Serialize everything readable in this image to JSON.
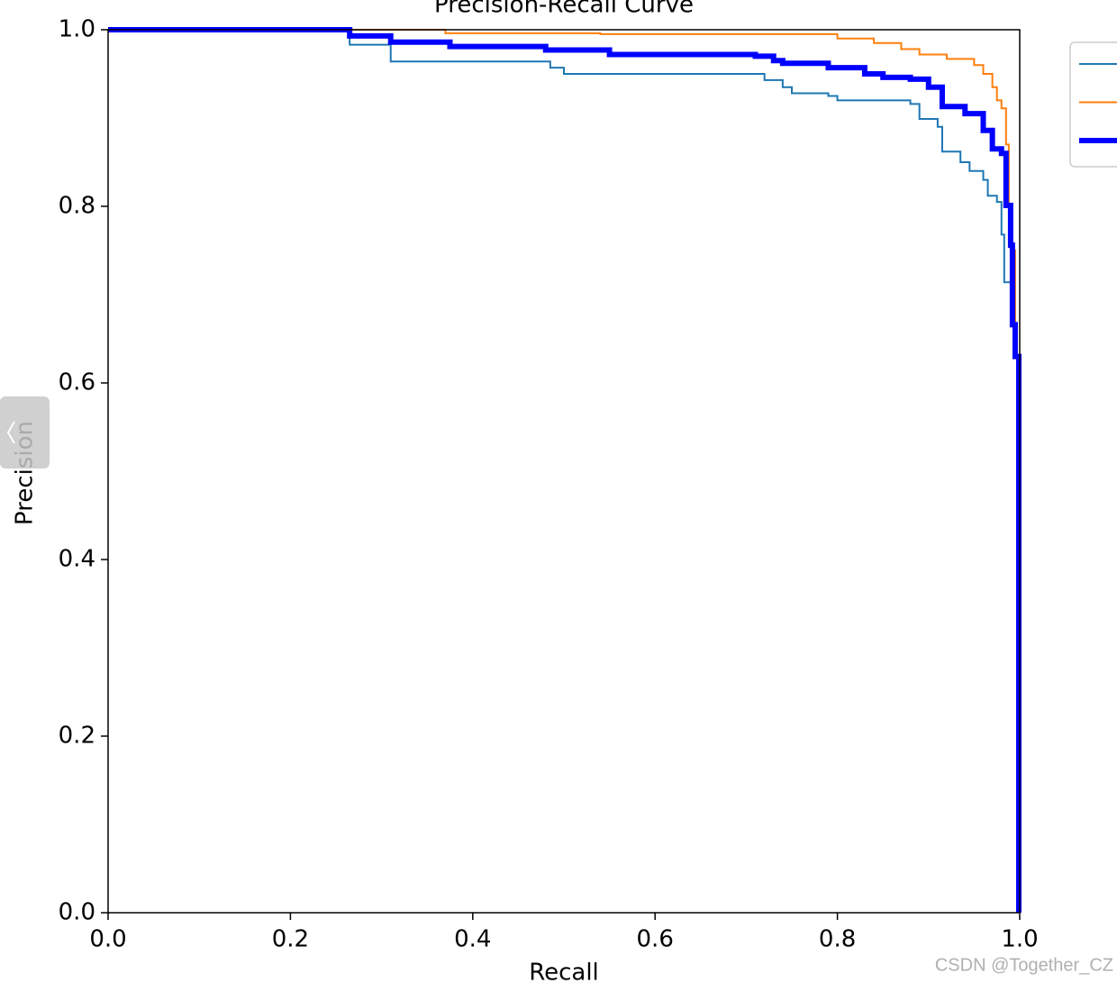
{
  "chart_data": {
    "type": "line",
    "title": "Precision-Recall Curve",
    "xlabel": "Recall",
    "ylabel": "Precision",
    "drawstyle": "steps-post",
    "legend": true,
    "xlim": [
      0,
      1
    ],
    "ylim": [
      0,
      1
    ],
    "xticks": [
      {
        "value": 0,
        "label": "0.0"
      },
      0.2,
      0.4,
      0.6,
      0.8,
      {
        "value": 1,
        "label": "1.0"
      }
    ],
    "yticks": [
      {
        "value": 0,
        "label": "0.0"
      },
      0.2,
      0.4,
      0.6,
      0.8,
      {
        "value": 1,
        "label": "1.0"
      }
    ],
    "series": [
      {
        "color": "#1f77b4",
        "width": 2,
        "x": [
          0,
          0.265,
          0.31,
          0.485,
          0.5,
          0.72,
          0.74,
          0.75,
          0.79,
          0.8,
          0.88,
          0.89,
          0.91,
          0.915,
          0.935,
          0.945,
          0.96,
          0.965,
          0.975,
          0.98,
          0.983,
          0.995,
          1.0
        ],
        "values": [
          1.0,
          0.983,
          0.964,
          0.957,
          0.95,
          0.943,
          0.935,
          0.928,
          0.925,
          0.92,
          0.916,
          0.899,
          0.89,
          0.862,
          0.85,
          0.84,
          0.83,
          0.812,
          0.805,
          0.768,
          0.714,
          0.63,
          0.0
        ]
      },
      {
        "color": "#ff7f0e",
        "width": 2,
        "x": [
          0,
          0.37,
          0.54,
          0.8,
          0.84,
          0.87,
          0.89,
          0.92,
          0.95,
          0.96,
          0.97,
          0.975,
          0.98,
          0.985,
          0.988,
          0.99,
          0.995,
          1.0
        ],
        "values": [
          1.0,
          0.996,
          0.995,
          0.99,
          0.985,
          0.978,
          0.972,
          0.967,
          0.96,
          0.95,
          0.935,
          0.92,
          0.911,
          0.87,
          0.799,
          0.75,
          0.63,
          0.0
        ]
      },
      {
        "color": "#0000ff",
        "width": 6,
        "x": [
          0,
          0.265,
          0.31,
          0.375,
          0.48,
          0.55,
          0.71,
          0.73,
          0.74,
          0.79,
          0.83,
          0.85,
          0.88,
          0.9,
          0.915,
          0.94,
          0.96,
          0.97,
          0.98,
          0.985,
          0.99,
          0.992,
          0.995,
          0.999
        ],
        "values": [
          1.0,
          0.993,
          0.986,
          0.981,
          0.977,
          0.972,
          0.97,
          0.965,
          0.962,
          0.957,
          0.95,
          0.946,
          0.944,
          0.935,
          0.913,
          0.905,
          0.886,
          0.865,
          0.86,
          0.801,
          0.756,
          0.666,
          0.63,
          0.0
        ]
      }
    ]
  },
  "watermark": "CSDN @Together_CZ"
}
